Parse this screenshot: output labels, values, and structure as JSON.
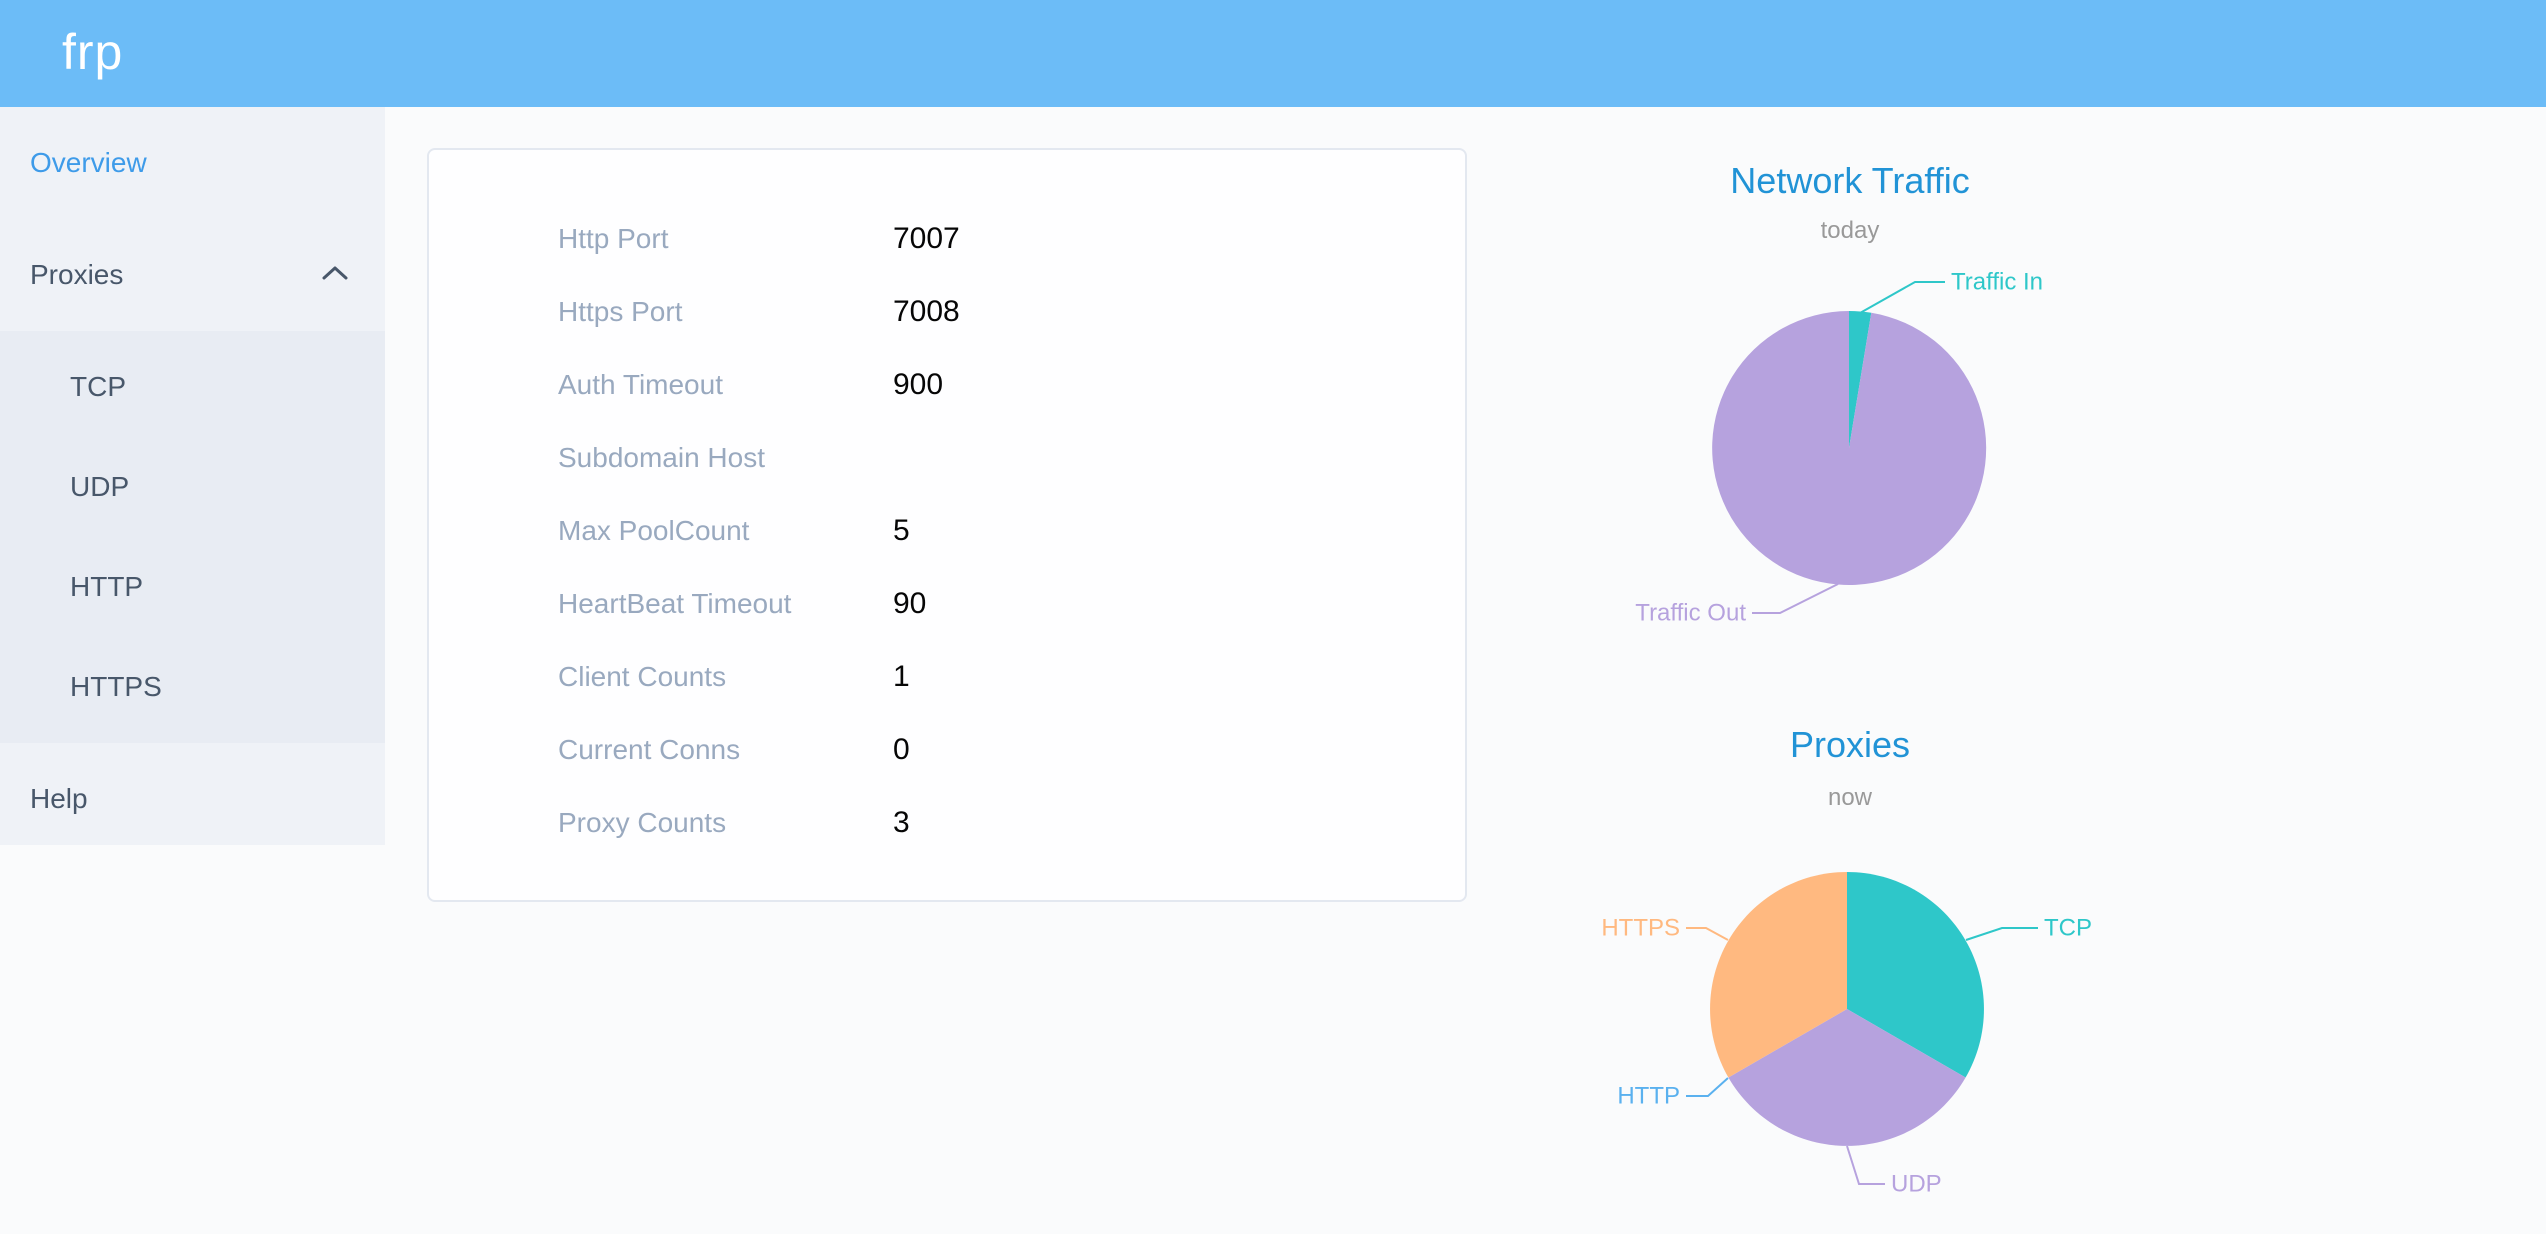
{
  "header": {
    "logo": "frp"
  },
  "sidebar": {
    "items": [
      {
        "label": "Overview",
        "active": true
      },
      {
        "label": "Proxies",
        "expanded": true,
        "children": [
          "TCP",
          "UDP",
          "HTTP",
          "HTTPS"
        ]
      },
      {
        "label": "Help"
      }
    ]
  },
  "overview_panel": {
    "rows": [
      {
        "label": "Http Port",
        "value": "7007"
      },
      {
        "label": "Https Port",
        "value": "7008"
      },
      {
        "label": "Auth Timeout",
        "value": "900"
      },
      {
        "label": "Subdomain Host",
        "value": ""
      },
      {
        "label": "Max PoolCount",
        "value": "5"
      },
      {
        "label": "HeartBeat Timeout",
        "value": "90"
      },
      {
        "label": "Client Counts",
        "value": "1"
      },
      {
        "label": "Current Conns",
        "value": "0"
      },
      {
        "label": "Proxy Counts",
        "value": "3"
      }
    ]
  },
  "chart_data": [
    {
      "type": "pie",
      "title": "Network Traffic",
      "subtitle": "today",
      "legend_position": "none",
      "slices": [
        {
          "label": "Traffic In",
          "value": 2.6,
          "unit": "percent",
          "color": "#2ec7c9"
        },
        {
          "label": "Traffic Out",
          "value": 97.4,
          "unit": "percent",
          "color": "#b6a2de"
        }
      ]
    },
    {
      "type": "pie",
      "title": "Proxies",
      "subtitle": "now",
      "legend_position": "none",
      "slices": [
        {
          "label": "TCP",
          "value": 1,
          "color": "#2ec7c9"
        },
        {
          "label": "UDP",
          "value": 1,
          "color": "#b6a2de"
        },
        {
          "label": "HTTP",
          "value": 0,
          "color": "#5ab1ef"
        },
        {
          "label": "HTTPS",
          "value": 1,
          "color": "#ffb980"
        }
      ]
    }
  ],
  "colors": {
    "header_bg": "#6cbcf7",
    "sidebar_bg": "#eff2f7",
    "submenu_bg": "#e8ecf3",
    "menu_text": "#48576a",
    "menu_active": "#3e9be9",
    "row_label": "#99a9bf",
    "row_value": "#060606",
    "chart_title": "#2193d6",
    "chart_subtitle": "#999999"
  }
}
